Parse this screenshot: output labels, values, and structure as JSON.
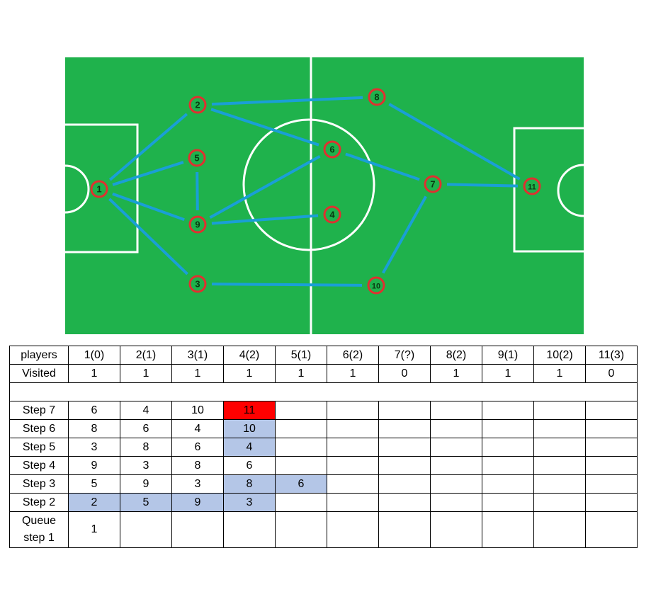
{
  "diagram": {
    "colors": {
      "pitch": "#1fb24c",
      "lines": "#ffffff",
      "edge": "#1a9fd6",
      "node_ring": "#e03030",
      "node_fill": "#1fb24c",
      "node_text": "#0a3a12"
    },
    "nodes": [
      {
        "id": "1",
        "label": "1"
      },
      {
        "id": "2",
        "label": "2"
      },
      {
        "id": "3",
        "label": "3"
      },
      {
        "id": "4",
        "label": "4"
      },
      {
        "id": "5",
        "label": "5"
      },
      {
        "id": "6",
        "label": "6"
      },
      {
        "id": "7",
        "label": "7"
      },
      {
        "id": "8",
        "label": "8"
      },
      {
        "id": "9",
        "label": "9"
      },
      {
        "id": "10",
        "label": "10"
      },
      {
        "id": "11",
        "label": "11"
      }
    ],
    "edges": [
      [
        "1",
        "2"
      ],
      [
        "1",
        "5"
      ],
      [
        "1",
        "9"
      ],
      [
        "1",
        "3"
      ],
      [
        "2",
        "8"
      ],
      [
        "2",
        "6"
      ],
      [
        "5",
        "9"
      ],
      [
        "9",
        "6"
      ],
      [
        "9",
        "4"
      ],
      [
        "3",
        "10"
      ],
      [
        "6",
        "7"
      ],
      [
        "8",
        "11"
      ],
      [
        "7",
        "11"
      ],
      [
        "7",
        "10"
      ]
    ]
  },
  "table": {
    "header": [
      "players",
      "1(0)",
      "2(1)",
      "3(1)",
      "4(2)",
      "5(1)",
      "6(2)",
      "7(?)",
      "8(2)",
      "9(1)",
      "10(2)",
      "11(3)"
    ],
    "visited": [
      "Visited",
      "1",
      "1",
      "1",
      "1",
      "1",
      "1",
      "0",
      "1",
      "1",
      "1",
      "0"
    ],
    "steps": [
      {
        "label": "Step 7",
        "values": [
          "6",
          "4",
          "10",
          "11",
          "",
          "",
          "",
          "",
          "",
          "",
          ""
        ],
        "highlight": [
          null,
          null,
          null,
          "red",
          null,
          null,
          null,
          null,
          null,
          null,
          null
        ]
      },
      {
        "label": "Step 6",
        "values": [
          "8",
          "6",
          "4",
          "10",
          "",
          "",
          "",
          "",
          "",
          "",
          ""
        ],
        "highlight": [
          null,
          null,
          null,
          "blue",
          null,
          null,
          null,
          null,
          null,
          null,
          null
        ]
      },
      {
        "label": "Step 5",
        "values": [
          "3",
          "8",
          "6",
          "4",
          "",
          "",
          "",
          "",
          "",
          "",
          ""
        ],
        "highlight": [
          null,
          null,
          null,
          "blue",
          null,
          null,
          null,
          null,
          null,
          null,
          null
        ]
      },
      {
        "label": "Step 4",
        "values": [
          "9",
          "3",
          "8",
          "6",
          "",
          "",
          "",
          "",
          "",
          "",
          ""
        ],
        "highlight": [
          null,
          null,
          null,
          null,
          null,
          null,
          null,
          null,
          null,
          null,
          null
        ]
      },
      {
        "label": "Step 3",
        "values": [
          "5",
          "9",
          "3",
          "8",
          "6",
          "",
          "",
          "",
          "",
          "",
          ""
        ],
        "highlight": [
          null,
          null,
          null,
          "blue",
          "blue",
          null,
          null,
          null,
          null,
          null,
          null
        ]
      },
      {
        "label": "Step 2",
        "values": [
          "2",
          "5",
          "9",
          "3",
          "",
          "",
          "",
          "",
          "",
          "",
          ""
        ],
        "highlight": [
          "blue",
          "blue",
          "blue",
          "blue",
          null,
          null,
          null,
          null,
          null,
          null,
          null
        ]
      }
    ],
    "queue": {
      "label_line1": "Queue",
      "label_line2": "step 1",
      "values": [
        "1",
        "",
        "",
        "",
        "",
        "",
        "",
        "",
        "",
        "",
        ""
      ]
    }
  }
}
